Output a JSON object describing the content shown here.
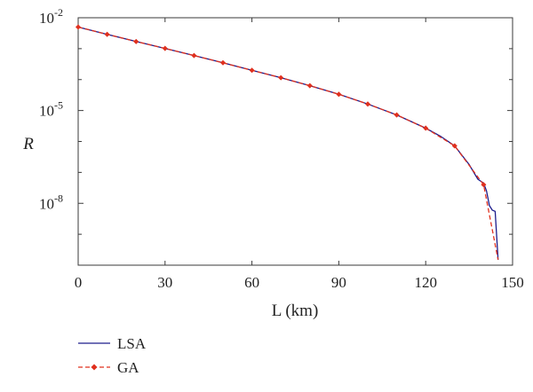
{
  "chart_data": {
    "type": "line",
    "title": "",
    "xlabel": "L (km)",
    "ylabel": "R",
    "x_scale": "linear",
    "y_scale": "log",
    "xlim": [
      0,
      150
    ],
    "ylim": [
      1e-10,
      0.01
    ],
    "x_ticks": [
      0,
      30,
      60,
      90,
      120,
      150
    ],
    "x_tick_labels": [
      "0",
      "30",
      "60",
      "90",
      "120",
      "150"
    ],
    "y_major_ticks": [
      1e-08,
      1e-05,
      0.01
    ],
    "y_tick_labels": [
      {
        "base": "10",
        "exp": "-8"
      },
      {
        "base": "10",
        "exp": "-5"
      },
      {
        "base": "10",
        "exp": "-2"
      }
    ],
    "grid": false,
    "legend_position": "bottom-left, outside plot",
    "series": [
      {
        "name": "LSA",
        "color": "#1c1c8c",
        "style": "solid",
        "x": [
          0,
          10,
          20,
          30,
          40,
          50,
          60,
          70,
          80,
          90,
          100,
          110,
          120,
          125,
          130,
          135,
          138,
          140,
          141,
          142,
          143,
          144,
          145
        ],
        "y": [
          0.005,
          0.0029,
          0.0017,
          0.00102,
          0.0006,
          0.00035,
          0.0002,
          0.000115,
          6.35e-05,
          3.35e-05,
          1.62e-05,
          7.2e-06,
          2.7e-06,
          1.5e-06,
          7.2e-07,
          1.8e-07,
          6e-08,
          4.5e-08,
          2.5e-08,
          8.5e-09,
          6e-09,
          5.5e-09,
          1.5e-10
        ]
      },
      {
        "name": "GA",
        "color": "#e0301e",
        "style": "dashed",
        "marker": "diamond",
        "x": [
          0,
          10,
          20,
          30,
          40,
          50,
          60,
          70,
          80,
          90,
          100,
          110,
          120,
          130,
          140,
          145
        ],
        "y": [
          0.005,
          0.0029,
          0.0017,
          0.00102,
          0.0006,
          0.00035,
          0.0002,
          0.000115,
          6.35e-05,
          3.35e-05,
          1.62e-05,
          7.2e-06,
          2.7e-06,
          7.2e-07,
          4e-08,
          1.5e-10
        ]
      }
    ]
  }
}
